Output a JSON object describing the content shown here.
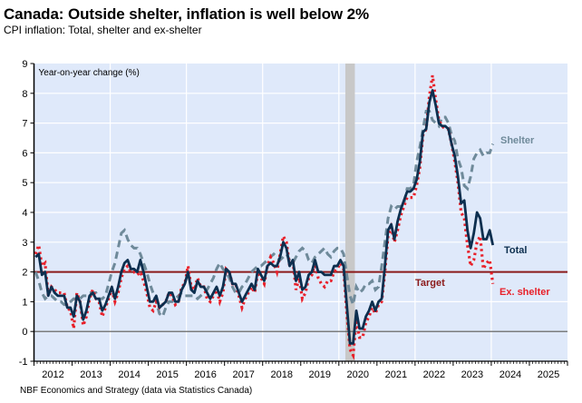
{
  "title": "Canada: Outside shelter, inflation is well below 2%",
  "subtitle": "CPI inflation: Total, shelter and ex-shelter",
  "source": "NBF Economics and Strategy (data via Statistics Canada)",
  "colors": {
    "plot_bg": "#dfe9fa",
    "total": "#0d2f4f",
    "shelter": "#6f8a9a",
    "ex_shelter": "#e8202a",
    "target": "#8b1a1a",
    "recession": "#c8c8c8",
    "zero_line": "#555555"
  },
  "chart_data": {
    "type": "line",
    "title": "Canada: Outside shelter, inflation is well below 2%",
    "subtitle": "CPI inflation: Total, shelter and ex-shelter",
    "ylabel": "Year-on-year change (%)",
    "xlabel": "",
    "ylim": [
      -1,
      9
    ],
    "xlim": [
      2012.0,
      2026.0
    ],
    "yticks": [
      -1,
      0,
      1,
      2,
      3,
      4,
      5,
      6,
      7,
      8,
      9
    ],
    "xtick_labels": [
      "2012",
      "2013",
      "2014",
      "2015",
      "2016",
      "2017",
      "2018",
      "2019",
      "2020",
      "2021",
      "2022",
      "2023",
      "2024",
      "2025"
    ],
    "grid": true,
    "start": "2012-01",
    "frequency": "monthly",
    "target_line": {
      "value": 2,
      "label": "Target"
    },
    "recession_shading": {
      "from": 2020.17,
      "to": 2020.42
    },
    "series": [
      {
        "name": "Total",
        "label": "Total",
        "style": "solid",
        "values": [
          2.5,
          2.6,
          1.9,
          2.0,
          1.2,
          1.5,
          1.3,
          1.2,
          1.2,
          1.2,
          0.8,
          0.8,
          0.5,
          1.2,
          1.0,
          0.4,
          0.7,
          1.2,
          1.3,
          1.1,
          1.1,
          0.7,
          0.9,
          1.2,
          1.5,
          1.1,
          1.5,
          2.0,
          2.3,
          2.4,
          2.1,
          2.1,
          2.0,
          2.4,
          2.0,
          1.5,
          1.0,
          1.0,
          1.2,
          0.8,
          0.9,
          1.0,
          1.3,
          1.3,
          1.0,
          1.0,
          1.4,
          1.6,
          2.0,
          1.4,
          1.3,
          1.7,
          1.5,
          1.5,
          1.3,
          1.1,
          1.3,
          1.5,
          1.2,
          1.5,
          2.1,
          2.0,
          1.6,
          1.6,
          1.3,
          1.0,
          1.2,
          1.4,
          1.6,
          1.4,
          2.1,
          1.9,
          1.7,
          2.2,
          2.3,
          2.2,
          2.2,
          2.5,
          3.0,
          2.8,
          2.2,
          2.4,
          1.7,
          2.0,
          1.4,
          1.5,
          1.9,
          2.0,
          2.4,
          2.0,
          2.0,
          1.9,
          1.9,
          1.9,
          2.2,
          2.2,
          2.4,
          2.2,
          0.9,
          -0.4,
          -0.4,
          0.7,
          0.1,
          0.1,
          0.5,
          0.7,
          1.0,
          0.7,
          1.0,
          1.1,
          2.2,
          3.4,
          3.6,
          3.1,
          3.7,
          4.1,
          4.4,
          4.7,
          4.7,
          4.8,
          5.1,
          5.7,
          6.7,
          6.8,
          7.7,
          8.1,
          7.6,
          7.0,
          6.9,
          6.9,
          6.8,
          6.3,
          5.9,
          5.2,
          4.3,
          4.4,
          3.4,
          2.8,
          3.3,
          4.0,
          3.8,
          3.1,
          3.1,
          3.4,
          2.9
        ]
      },
      {
        "name": "Shelter",
        "label": "Shelter",
        "style": "dashed",
        "values": [
          2.0,
          1.7,
          1.3,
          1.1,
          1.2,
          1.2,
          1.1,
          1.0,
          1.0,
          0.9,
          0.9,
          1.0,
          1.1,
          1.1,
          1.1,
          1.2,
          1.2,
          1.3,
          1.3,
          1.3,
          1.1,
          1.1,
          1.2,
          1.6,
          2.0,
          2.3,
          2.8,
          3.3,
          3.4,
          3.1,
          2.9,
          2.8,
          2.8,
          2.6,
          2.3,
          2.0,
          1.6,
          1.3,
          1.0,
          0.6,
          0.5,
          0.8,
          1.0,
          1.0,
          1.1,
          1.2,
          1.3,
          1.2,
          1.2,
          1.2,
          1.2,
          1.1,
          1.2,
          1.3,
          1.4,
          1.6,
          1.8,
          2.1,
          2.3,
          2.1,
          2.0,
          1.8,
          1.5,
          1.3,
          1.3,
          1.5,
          1.6,
          1.8,
          2.0,
          2.1,
          2.2,
          2.2,
          2.3,
          2.4,
          2.5,
          2.6,
          2.5,
          2.4,
          2.5,
          2.6,
          2.4,
          2.3,
          2.5,
          2.7,
          2.8,
          2.7,
          2.4,
          2.3,
          2.5,
          2.6,
          2.7,
          2.8,
          2.6,
          2.5,
          2.7,
          2.8,
          2.8,
          2.6,
          1.9,
          1.2,
          0.9,
          1.5,
          1.3,
          1.4,
          1.6,
          1.6,
          1.7,
          1.4,
          1.5,
          2.2,
          3.0,
          3.8,
          4.2,
          4.1,
          4.2,
          4.2,
          4.3,
          4.8,
          4.8,
          4.9,
          5.7,
          6.2,
          6.8,
          7.4,
          7.4,
          7.1,
          7.0,
          6.9,
          7.2,
          7.2,
          7.0,
          6.6,
          6.4,
          5.8,
          5.5,
          4.9,
          4.8,
          5.2,
          5.8,
          6.0,
          6.1,
          5.9,
          6.0,
          6.0,
          6.3
        ]
      },
      {
        "name": "Ex. shelter",
        "label": "Ex. shelter",
        "style": "dotted",
        "values": [
          2.6,
          2.9,
          2.2,
          2.3,
          1.2,
          1.5,
          1.4,
          1.3,
          1.3,
          1.3,
          0.8,
          0.7,
          0.1,
          1.3,
          1.0,
          0.2,
          0.5,
          1.1,
          1.4,
          1.1,
          1.0,
          0.5,
          0.8,
          1.1,
          1.4,
          1.0,
          1.3,
          1.8,
          2.1,
          2.2,
          2.0,
          2.0,
          1.9,
          2.0,
          1.7,
          1.3,
          0.8,
          0.7,
          1.0,
          0.8,
          0.9,
          1.0,
          1.3,
          1.2,
          0.9,
          1.0,
          1.5,
          1.6,
          2.2,
          1.5,
          1.4,
          1.8,
          1.5,
          1.5,
          1.1,
          1.0,
          1.2,
          1.4,
          1.0,
          1.3,
          2.1,
          2.0,
          1.6,
          1.6,
          1.2,
          0.8,
          1.1,
          1.3,
          1.5,
          1.3,
          2.0,
          1.8,
          1.6,
          2.2,
          2.5,
          2.3,
          2.0,
          2.6,
          3.2,
          3.0,
          2.2,
          2.4,
          1.4,
          1.8,
          1.1,
          1.3,
          1.8,
          1.9,
          2.3,
          1.8,
          1.6,
          1.5,
          1.7,
          1.7,
          2.0,
          2.1,
          2.3,
          2.1,
          0.6,
          -0.6,
          -0.8,
          0.4,
          -0.2,
          -0.2,
          0.3,
          0.5,
          0.8,
          0.6,
          0.9,
          1.0,
          2.0,
          3.2,
          3.5,
          3.0,
          3.4,
          3.9,
          4.2,
          4.5,
          4.5,
          4.5,
          4.9,
          5.5,
          6.6,
          6.8,
          7.9,
          8.6,
          7.8,
          7.1,
          6.9,
          6.8,
          6.8,
          6.3,
          5.7,
          5.0,
          4.0,
          3.8,
          2.9,
          2.2,
          2.4,
          3.0,
          3.2,
          2.1,
          2.3,
          2.4,
          1.6
        ]
      }
    ]
  }
}
